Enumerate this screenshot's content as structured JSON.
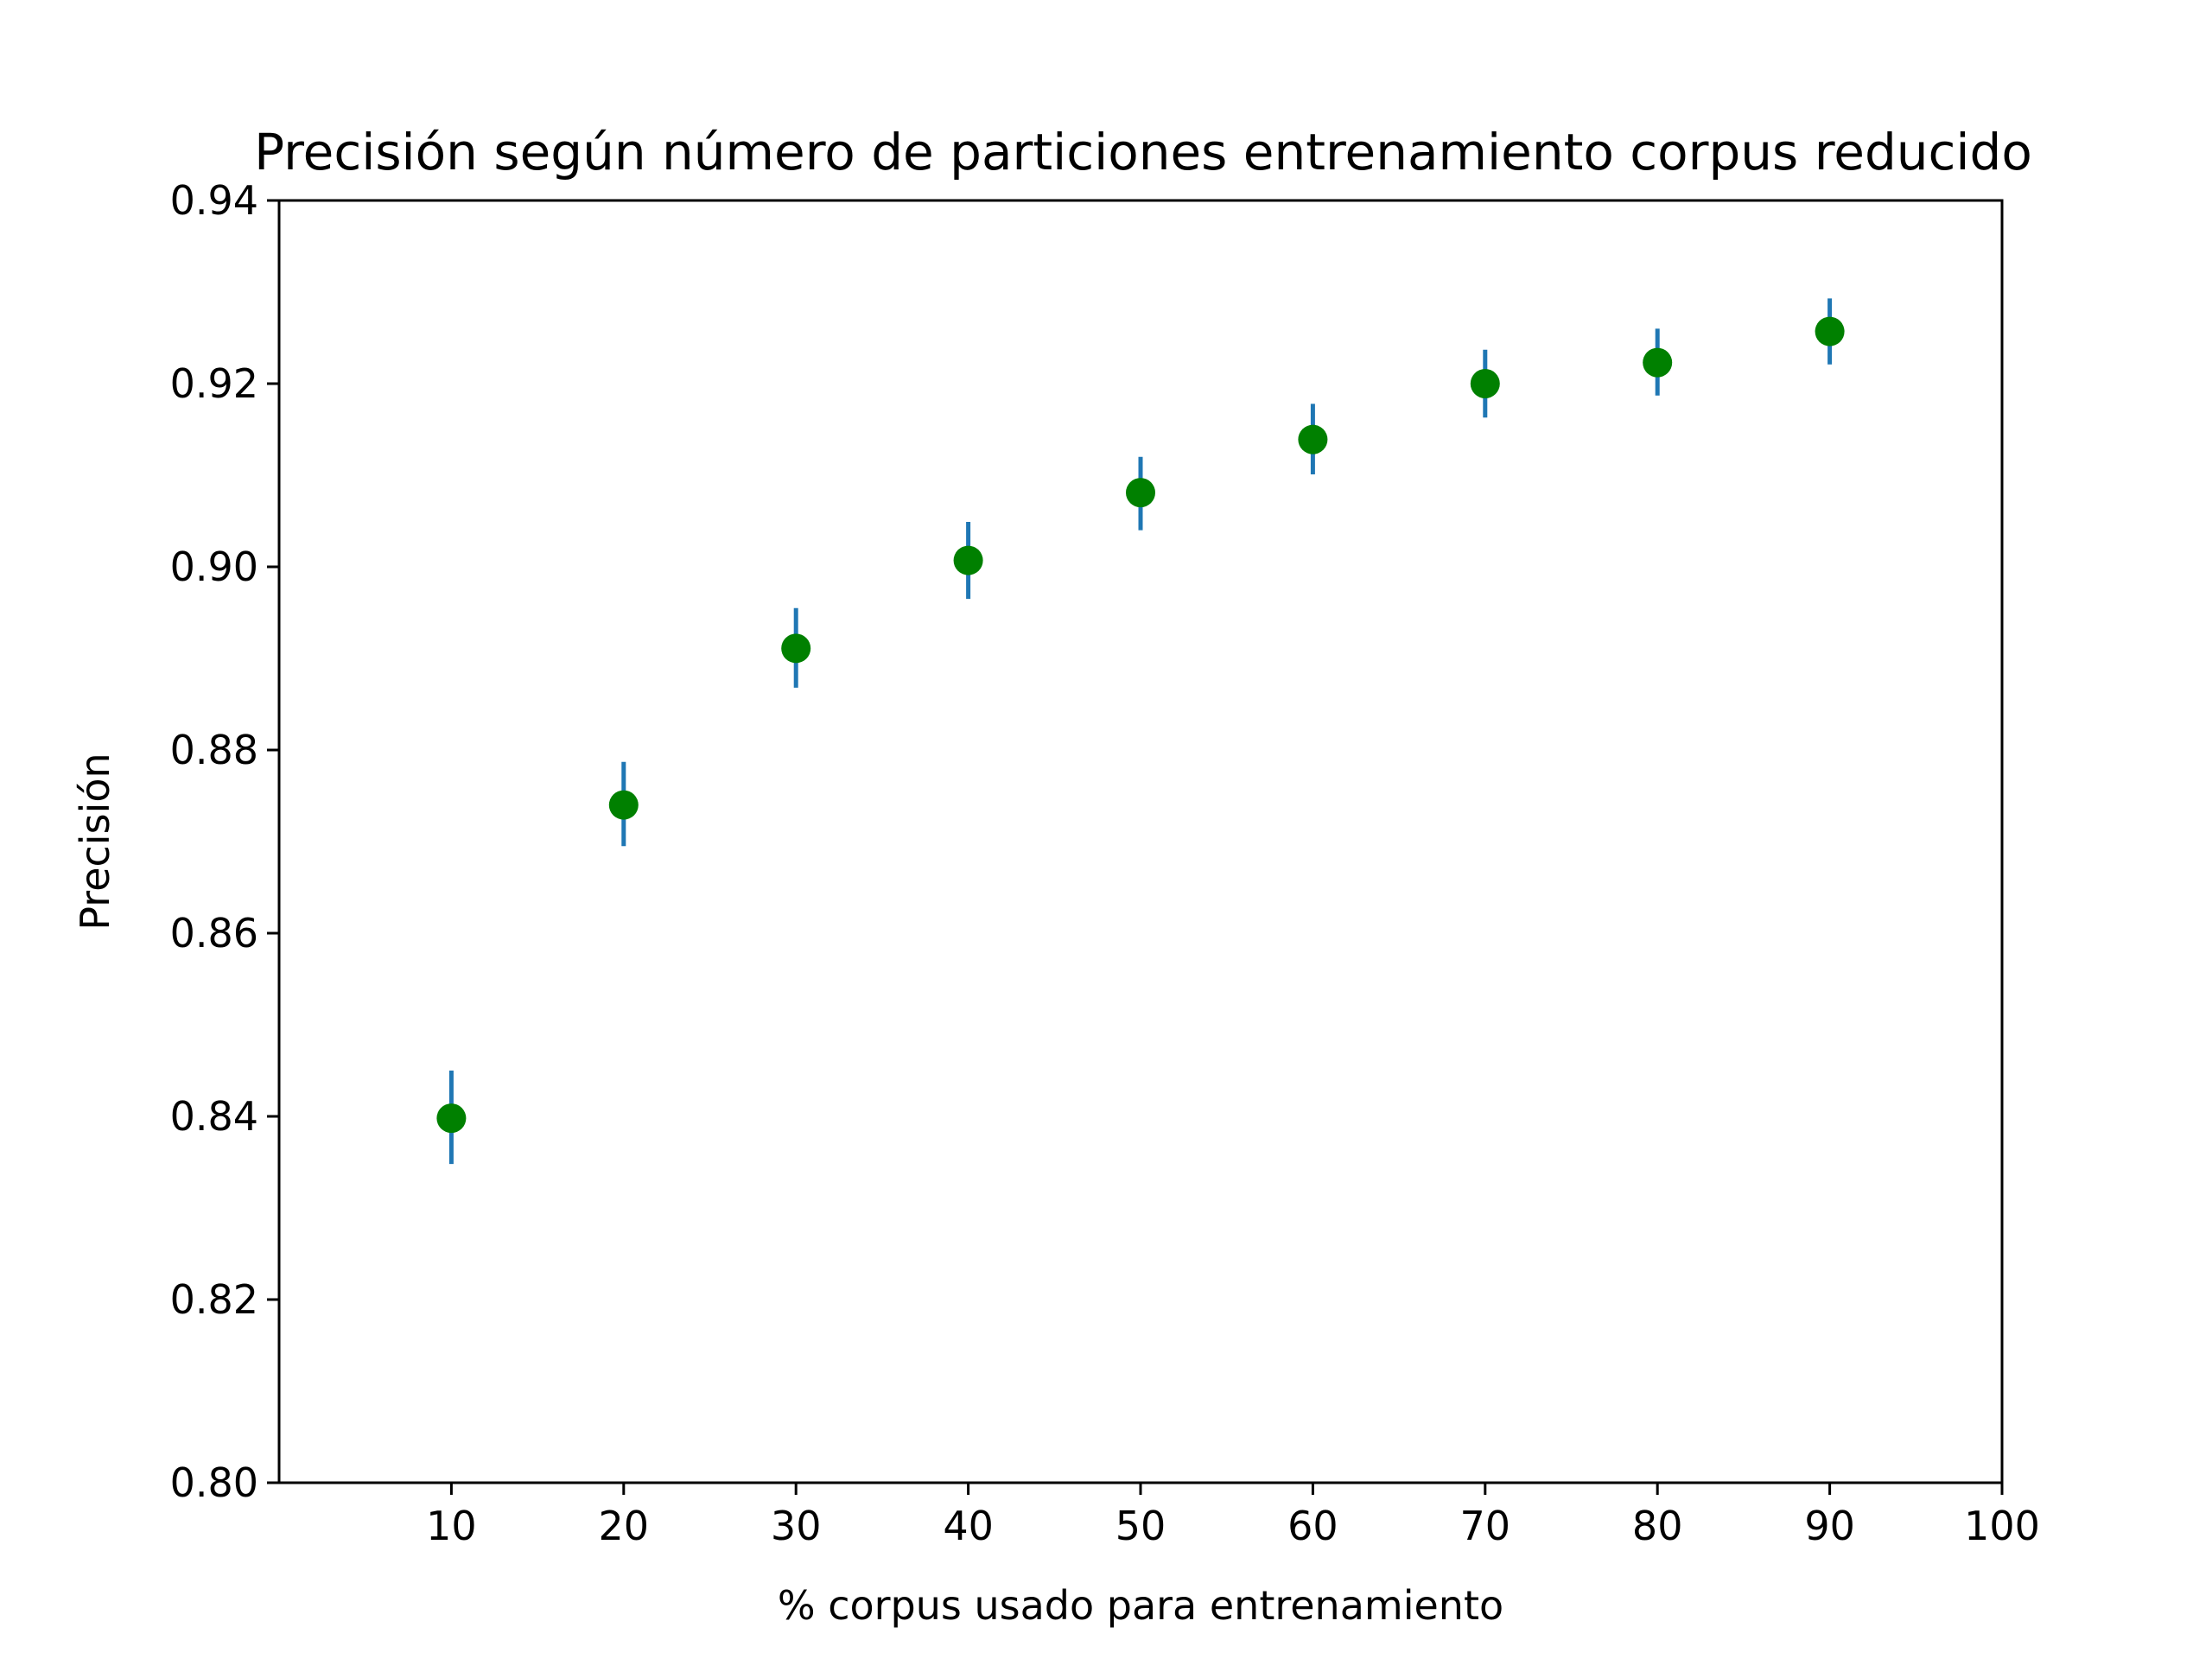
{
  "chart_data": {
    "type": "scatter",
    "title": "Precisión según número de particiones entrenamiento corpus reducido",
    "xlabel": "% corpus usado para entrenamiento",
    "ylabel": "Precisión",
    "xlim": [
      0,
      100
    ],
    "ylim": [
      0.8,
      0.94
    ],
    "xticks": [
      10,
      20,
      30,
      40,
      50,
      60,
      70,
      80,
      90,
      100
    ],
    "xtick_labels": [
      "10",
      "20",
      "30",
      "40",
      "50",
      "60",
      "70",
      "80",
      "90",
      "100"
    ],
    "yticks": [
      0.8,
      0.82,
      0.84,
      0.86,
      0.88,
      0.9,
      0.92,
      0.94
    ],
    "ytick_labels": [
      "0.80",
      "0.82",
      "0.84",
      "0.86",
      "0.88",
      "0.90",
      "0.92",
      "0.94"
    ],
    "grid": false,
    "legend": "none",
    "series": [
      {
        "x": [
          10,
          20,
          30,
          40,
          50,
          60,
          70,
          80,
          90
        ],
        "y": [
          0.8398,
          0.874,
          0.8911,
          0.9007,
          0.9081,
          0.9139,
          0.92,
          0.9223,
          0.9257
        ],
        "err_low": [
          0.8348,
          0.8695,
          0.8868,
          0.8965,
          0.904,
          0.9101,
          0.9163,
          0.9187,
          0.9221
        ],
        "err_high": [
          0.845,
          0.8787,
          0.8955,
          0.9049,
          0.912,
          0.9178,
          0.9237,
          0.926,
          0.9293
        ],
        "marker_color": "#008000",
        "errorbar_color": "#1f77b4"
      }
    ]
  }
}
